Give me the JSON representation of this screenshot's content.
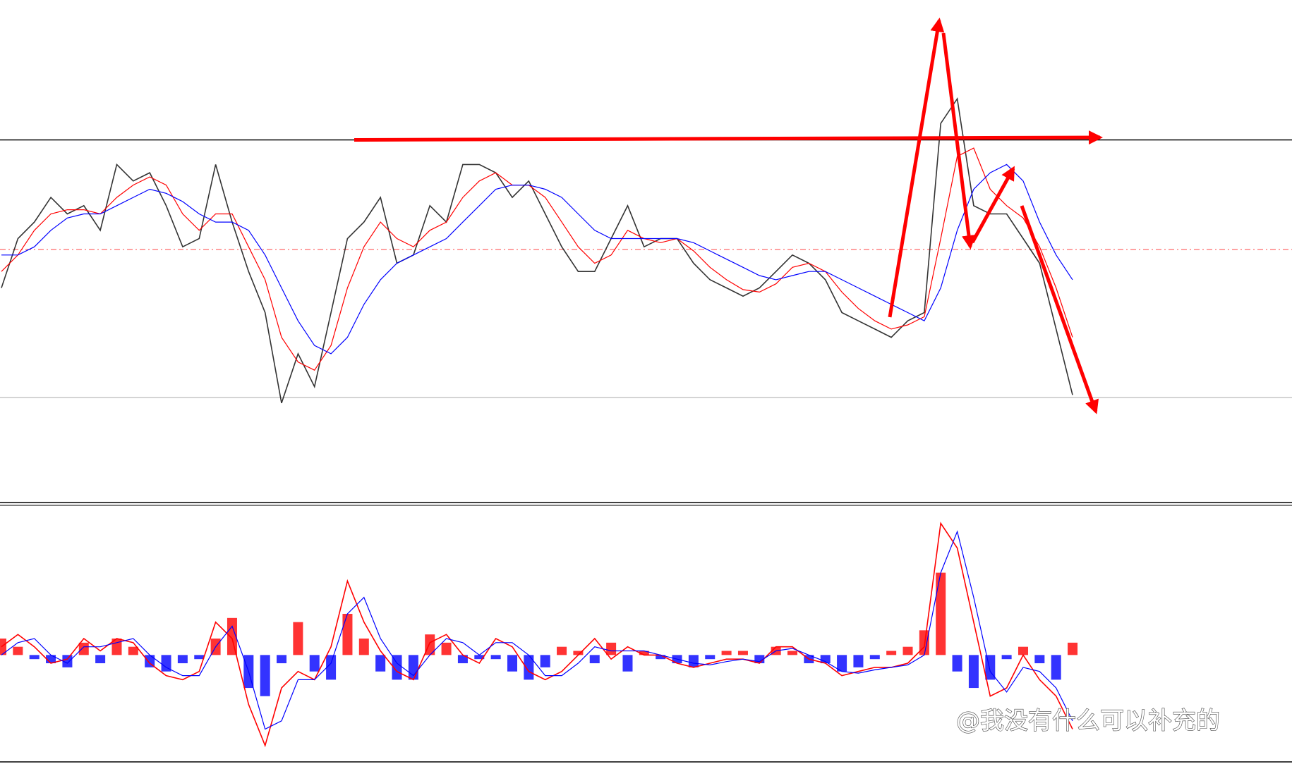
{
  "chart_data": [
    {
      "type": "line",
      "ylim": [
        0,
        610
      ],
      "series": [
        {
          "name": "price",
          "color": "#333333",
          "values": [
            260,
            320,
            340,
            370,
            350,
            360,
            330,
            410,
            390,
            400,
            360,
            310,
            320,
            410,
            340,
            280,
            230,
            120,
            180,
            140,
            230,
            320,
            340,
            370,
            290,
            300,
            360,
            340,
            410,
            410,
            400,
            370,
            390,
            350,
            310,
            280,
            280,
            320,
            360,
            310,
            320,
            320,
            290,
            270,
            260,
            250,
            260,
            280,
            300,
            290,
            270,
            230,
            220,
            210,
            200,
            220,
            230,
            460,
            490,
            360,
            350,
            350,
            320,
            290,
            210,
            130
          ]
        },
        {
          "name": "fast-ma",
          "color": "#ff0000",
          "values": [
            280,
            300,
            330,
            350,
            355,
            355,
            350,
            370,
            385,
            395,
            385,
            350,
            330,
            350,
            350,
            310,
            270,
            200,
            170,
            160,
            190,
            260,
            310,
            340,
            320,
            310,
            330,
            340,
            370,
            390,
            400,
            385,
            385,
            370,
            340,
            310,
            290,
            300,
            330,
            320,
            315,
            320,
            305,
            285,
            270,
            258,
            255,
            265,
            285,
            290,
            280,
            255,
            235,
            220,
            210,
            215,
            225,
            320,
            420,
            430,
            380,
            360,
            345,
            310,
            260,
            200
          ]
        },
        {
          "name": "slow-ma",
          "color": "#0000ff",
          "values": [
            300,
            300,
            310,
            330,
            345,
            350,
            350,
            360,
            370,
            380,
            375,
            365,
            350,
            340,
            340,
            330,
            300,
            260,
            220,
            190,
            180,
            200,
            240,
            270,
            290,
            300,
            310,
            320,
            340,
            360,
            380,
            385,
            385,
            380,
            370,
            350,
            330,
            320,
            320,
            320,
            320,
            320,
            315,
            305,
            295,
            285,
            275,
            270,
            275,
            280,
            280,
            270,
            260,
            250,
            240,
            230,
            220,
            260,
            330,
            380,
            400,
            410,
            390,
            340,
            300,
            270
          ]
        }
      ]
    },
    {
      "type": "macd",
      "ylim": [
        -129,
        181
      ],
      "up_color": "#ff0000",
      "down_color": "#0000ff",
      "histogram": [
        20,
        10,
        -5,
        -10,
        -15,
        15,
        -10,
        20,
        10,
        -15,
        -20,
        -10,
        -5,
        20,
        45,
        -40,
        -50,
        -10,
        40,
        -20,
        -30,
        50,
        20,
        -20,
        -30,
        -30,
        25,
        15,
        -10,
        -5,
        -5,
        -20,
        -30,
        -15,
        10,
        5,
        -10,
        15,
        -20,
        5,
        -5,
        -10,
        -15,
        -5,
        5,
        5,
        -10,
        10,
        5,
        -10,
        -10,
        -20,
        -15,
        -5,
        5,
        10,
        30,
        100,
        -20,
        -40,
        -30,
        -5,
        10,
        -10,
        -30,
        15
      ],
      "series": [
        {
          "name": "macd",
          "color": "#ff0000",
          "values": [
            10,
            25,
            10,
            -10,
            -5,
            20,
            5,
            20,
            15,
            -10,
            -25,
            -30,
            -20,
            40,
            20,
            -60,
            -110,
            -40,
            -20,
            -30,
            10,
            90,
            40,
            5,
            -20,
            -30,
            15,
            25,
            0,
            -10,
            20,
            10,
            -20,
            -30,
            -20,
            0,
            20,
            -5,
            10,
            0,
            0,
            -10,
            -15,
            -10,
            -5,
            -5,
            -10,
            10,
            10,
            -5,
            -10,
            -25,
            -20,
            -15,
            -15,
            -10,
            10,
            160,
            130,
            40,
            -50,
            -40,
            0,
            -30,
            -50,
            -90
          ]
        },
        {
          "name": "signal",
          "color": "#0000ff",
          "values": [
            0,
            15,
            20,
            0,
            -10,
            10,
            10,
            15,
            20,
            0,
            -15,
            -25,
            -25,
            10,
            35,
            -20,
            -90,
            -80,
            -30,
            -30,
            -10,
            50,
            70,
            20,
            -10,
            -25,
            0,
            20,
            15,
            0,
            15,
            15,
            0,
            -25,
            -25,
            -10,
            10,
            5,
            5,
            5,
            0,
            -5,
            -10,
            -12,
            -8,
            -5,
            -8,
            5,
            8,
            0,
            -8,
            -20,
            -22,
            -18,
            -15,
            -12,
            0,
            100,
            150,
            70,
            -20,
            -45,
            -15,
            -20,
            -40,
            -80
          ]
        }
      ]
    }
  ],
  "watermark": "@我没有什么可以补充的"
}
